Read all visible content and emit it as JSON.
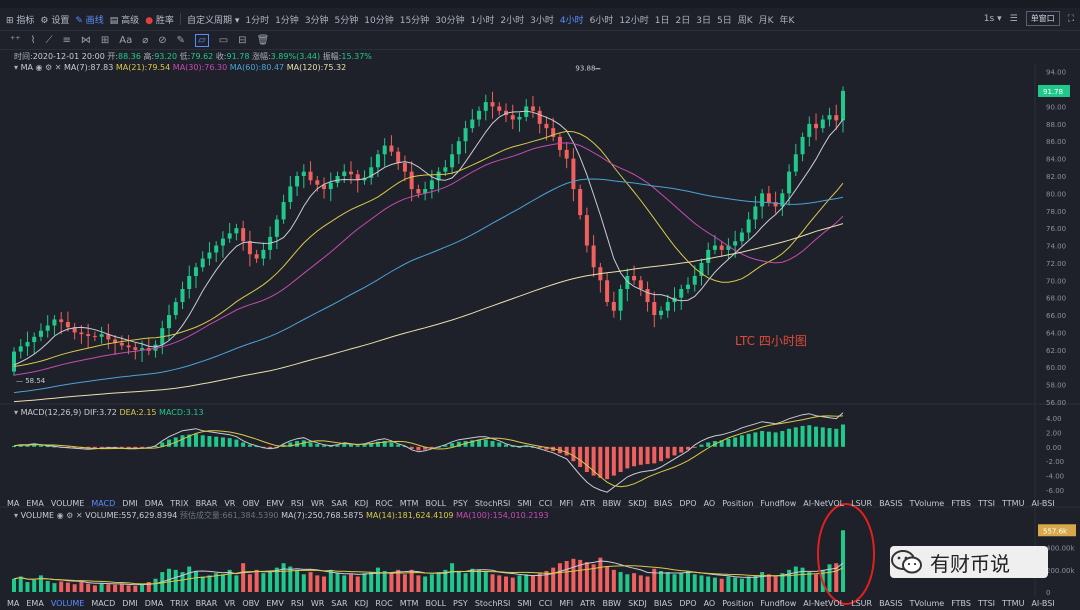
{
  "toolbar": {
    "items": [
      "指标",
      "设置",
      "画线",
      "高级",
      "胜率",
      "自定义周期"
    ],
    "intervals": [
      "1分时",
      "1分钟",
      "3分钟",
      "5分钟",
      "10分钟",
      "15分钟",
      "30分钟",
      "1小时",
      "2小时",
      "3小时",
      "4小时",
      "6小时",
      "12小时",
      "1日",
      "2日",
      "3日",
      "5日",
      "周K",
      "月K",
      "年K"
    ],
    "active_interval": "4小时",
    "right": {
      "step": "1s",
      "mode": "单窗口"
    }
  },
  "draw_tools": [
    "⁺⁺",
    "⌇",
    "⟋",
    "≡",
    "⋈",
    "⊞",
    "Aa",
    "⌀",
    "⊘",
    "✎",
    "▱",
    "▭",
    "⊟",
    "🗑"
  ],
  "ohlc": {
    "time_label": "时间:",
    "time": "2020-12-01 20:00",
    "open_label": "开:",
    "open": "88.36",
    "high_label": "高:",
    "high": "93.20",
    "low_label": "低:",
    "low": "79.62",
    "close_label": "收:",
    "close": "91.78",
    "change_label": "涨幅:",
    "change": "3.89%(3.44)",
    "amp_label": "振幅:",
    "amp": "15.37%"
  },
  "ma_legend": {
    "name": "MA",
    "ma7": "MA(7):87.83",
    "ma21": "MA(21):79.54",
    "ma30": "MA(30):76.30",
    "ma60": "MA(60):80.47",
    "ma120": "MA(120):75.32"
  },
  "macd_legend": {
    "name": "MACD(12,26,9)",
    "dif": "DIF:3.72",
    "dea": "DEA:2.15",
    "macd": "MACD:3.13"
  },
  "vol_legend": {
    "name": "VOLUME",
    "vol": "VOLUME:557,629.8394",
    "pred": "预估成交量:661,384.5390",
    "ma7": "MA(7):250,768.5875",
    "ma14": "MA(14):181,624.4109",
    "ma100": "MA(100):154,010.2193"
  },
  "indicator_tabs": [
    "MA",
    "EMA",
    "VOLUME",
    "MACD",
    "DMI",
    "DMA",
    "TRIX",
    "BRAR",
    "VR",
    "OBV",
    "EMV",
    "RSI",
    "WR",
    "SAR",
    "KDJ",
    "ROC",
    "MTM",
    "BOLL",
    "PSY",
    "StochRSI",
    "SMI",
    "CCI",
    "MFI",
    "ATR",
    "BBW",
    "SKDJ",
    "BIAS",
    "DPO",
    "AO",
    "Position",
    "Fundflow",
    "AI-NetVOL",
    "LSUR",
    "BASIS",
    "TVolume",
    "FTBS",
    "TTSI",
    "TTMU",
    "AI-BSI"
  ],
  "main_tab_active": "MACD",
  "vol_tab_active": "VOLUME",
  "annotation": "LTC 四小时图",
  "watermark": "有财币说",
  "colors": {
    "up": "#21c88b",
    "down": "#f0605e",
    "ma7": "#c9ccd4",
    "ma21": "#d8c94a",
    "ma30": "#c64bb2",
    "ma60": "#4aa3d8",
    "ma120": "#e8e0b0",
    "accent": "#5b8cff",
    "circle": "#e0201e"
  },
  "chart_data": [
    {
      "type": "candlestick",
      "title": "LTC 四小时图",
      "ylim": [
        56,
        95
      ],
      "y_ticks": [
        "94.00",
        "92.00",
        "90.00",
        "88.00",
        "86.00",
        "84.00",
        "82.00",
        "80.00",
        "78.00",
        "76.00",
        "74.00",
        "72.00",
        "70.00",
        "68.00",
        "66.00",
        "64.00",
        "62.00",
        "60.00",
        "58.00",
        "56.00"
      ],
      "last_price": "91.78",
      "high_marker": "93.88",
      "low_marker": "58.54",
      "close": [
        61.8,
        62.4,
        62.9,
        63.5,
        64.2,
        64.8,
        65.5,
        65.2,
        64.6,
        64.0,
        63.8,
        63.6,
        63.5,
        63.8,
        63.2,
        62.8,
        62.5,
        62.3,
        62.0,
        62.2,
        61.9,
        62.6,
        64.5,
        66.0,
        67.5,
        69.0,
        70.5,
        71.5,
        72.5,
        73.2,
        74.0,
        74.8,
        75.4,
        76.0,
        74.5,
        73.0,
        72.5,
        73.5,
        75.0,
        77.0,
        79.0,
        80.8,
        82.0,
        82.5,
        81.5,
        81.0,
        80.5,
        81.2,
        82.0,
        82.5,
        82.2,
        81.5,
        81.8,
        83.0,
        84.5,
        85.5,
        84.8,
        83.5,
        82.5,
        80.5,
        80.0,
        80.5,
        81.5,
        82.5,
        83.0,
        84.5,
        86.0,
        87.5,
        88.5,
        89.5,
        90.5,
        90.0,
        89.5,
        89.0,
        88.5,
        88.8,
        90.0,
        89.5,
        88.0,
        87.5,
        86.5,
        85.0,
        84.0,
        80.5,
        77.5,
        74.0,
        71.5,
        70.0,
        67.5,
        66.5,
        69.0,
        70.5,
        70.0,
        69.0,
        67.5,
        66.0,
        66.5,
        67.5,
        68.0,
        69.0,
        69.5,
        70.5,
        72.0,
        73.5,
        74.0,
        73.5,
        74.0,
        74.5,
        75.5,
        77.0,
        78.5,
        80.0,
        79.0,
        78.5,
        80.0,
        82.5,
        84.5,
        86.5,
        88.0,
        87.5,
        88.5,
        89.0,
        88.4,
        91.8
      ],
      "series": [
        {
          "name": "MA(7)",
          "last": 87.83
        },
        {
          "name": "MA(21)",
          "last": 79.54
        },
        {
          "name": "MA(30)",
          "last": 76.3
        },
        {
          "name": "MA(60)",
          "last": 80.47
        },
        {
          "name": "MA(120)",
          "last": 75.32
        }
      ]
    },
    {
      "type": "bar",
      "title": "MACD(12,26,9)",
      "ylim": [
        -6,
        4
      ],
      "y_ticks": [
        "4.00",
        "2.00",
        "0.00",
        "-2.00",
        "-4.00",
        "-6.00"
      ],
      "values": [
        0.1,
        0.2,
        0.2,
        0.3,
        0.2,
        0.1,
        0.05,
        -0.05,
        -0.1,
        -0.15,
        -0.2,
        -0.25,
        -0.2,
        -0.15,
        -0.1,
        -0.1,
        -0.15,
        -0.2,
        -0.2,
        -0.15,
        -0.1,
        0.1,
        0.6,
        1.0,
        1.3,
        1.6,
        1.7,
        1.8,
        1.6,
        1.5,
        1.4,
        1.3,
        1.2,
        1.0,
        0.6,
        0.3,
        0.1,
        -0.1,
        -0.2,
        -0.1,
        0.3,
        0.6,
        0.8,
        0.9,
        0.6,
        0.4,
        0.2,
        0.1,
        0.2,
        0.4,
        0.3,
        0.2,
        0.3,
        0.5,
        0.7,
        0.8,
        0.6,
        0.3,
        0.1,
        -0.3,
        -0.5,
        -0.4,
        -0.2,
        0.0,
        0.2,
        0.5,
        0.7,
        0.8,
        0.9,
        1.0,
        1.0,
        0.8,
        0.6,
        0.3,
        0.1,
        0.0,
        0.1,
        0.0,
        -0.2,
        -0.4,
        -0.6,
        -0.9,
        -1.2,
        -2.0,
        -2.8,
        -3.5,
        -4.0,
        -4.3,
        -4.5,
        -4.0,
        -3.5,
        -3.0,
        -2.7,
        -2.5,
        -2.4,
        -2.3,
        -2.0,
        -1.6,
        -1.2,
        -0.8,
        -0.4,
        -0.1,
        0.3,
        0.6,
        0.8,
        0.9,
        1.1,
        1.3,
        1.6,
        1.8,
        2.0,
        2.2,
        2.1,
        2.0,
        2.2,
        2.5,
        2.7,
        2.9,
        3.0,
        2.8,
        2.7,
        2.6,
        2.5,
        3.1
      ],
      "series": [
        {
          "name": "DIF",
          "last": 3.72
        },
        {
          "name": "DEA",
          "last": 2.15
        }
      ]
    },
    {
      "type": "bar",
      "title": "VOLUME",
      "ylim": [
        0,
        560000
      ],
      "y_ticks": [
        "400.00k",
        "200.00k",
        "0"
      ],
      "last_label": "557.6k",
      "values": [
        120000,
        140000,
        90000,
        110000,
        150000,
        100000,
        80000,
        95000,
        85000,
        70000,
        90000,
        75000,
        60000,
        80000,
        70000,
        65000,
        72000,
        60000,
        55000,
        70000,
        90000,
        120000,
        180000,
        210000,
        200000,
        180000,
        230000,
        190000,
        140000,
        150000,
        170000,
        160000,
        200000,
        150000,
        260000,
        160000,
        200000,
        170000,
        190000,
        220000,
        260000,
        230000,
        200000,
        160000,
        180000,
        150000,
        140000,
        200000,
        170000,
        150000,
        160000,
        140000,
        170000,
        180000,
        220000,
        190000,
        170000,
        200000,
        160000,
        200000,
        150000,
        140000,
        160000,
        180000,
        200000,
        260000,
        190000,
        170000,
        210000,
        200000,
        180000,
        160000,
        150000,
        140000,
        130000,
        150000,
        160000,
        150000,
        170000,
        190000,
        220000,
        260000,
        280000,
        300000,
        290000,
        270000,
        250000,
        310000,
        230000,
        200000,
        180000,
        160000,
        170000,
        150000,
        140000,
        210000,
        190000,
        180000,
        160000,
        170000,
        190000,
        160000,
        150000,
        140000,
        130000,
        120000,
        140000,
        130000,
        120000,
        140000,
        150000,
        180000,
        160000,
        140000,
        170000,
        200000,
        230000,
        220000,
        180000,
        160000,
        200000,
        250000,
        260000,
        557629
      ],
      "series": [
        {
          "name": "MA(7)",
          "last": 250768.5875
        },
        {
          "name": "MA(14)",
          "last": 181624.4109
        },
        {
          "name": "MA(100)",
          "last": 154010.2193
        }
      ]
    }
  ]
}
